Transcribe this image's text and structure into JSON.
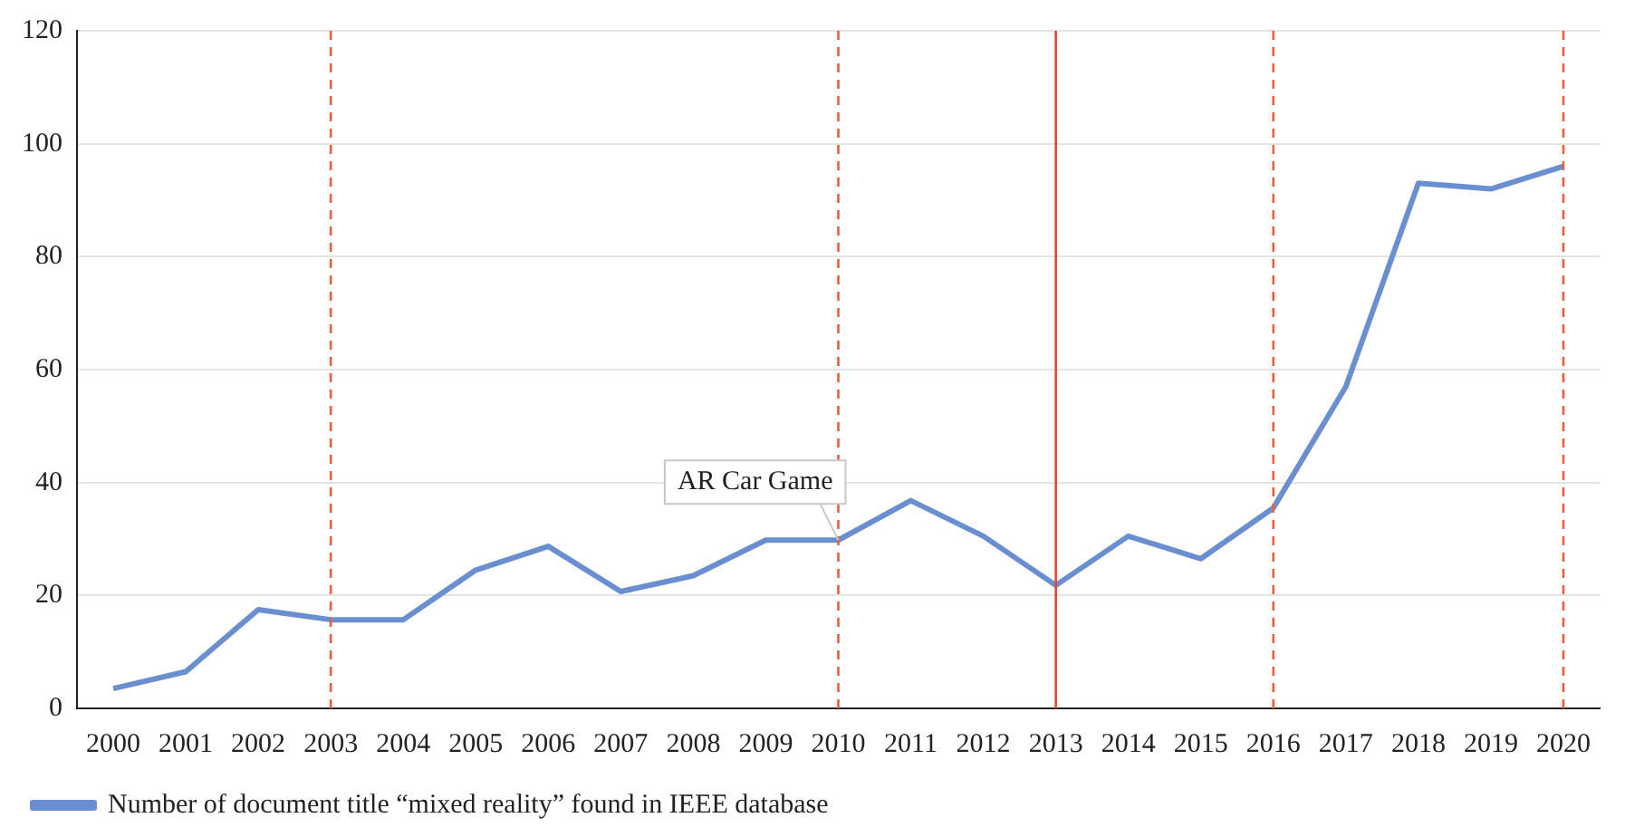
{
  "chart_data": {
    "type": "line",
    "categories": [
      "2000",
      "2001",
      "2002",
      "2003",
      "2004",
      "2005",
      "2006",
      "2007",
      "2008",
      "2009",
      "2010",
      "2011",
      "2012",
      "2013",
      "2014",
      "2015",
      "2016",
      "2017",
      "2018",
      "2019",
      "2020"
    ],
    "series": [
      {
        "name": "Number of document title “mixed reality” found in IEEE database",
        "color": "#6a8fd0",
        "values": [
          3.5,
          6.5,
          17.5,
          15.7,
          15.7,
          24.5,
          28.7,
          20.7,
          23.5,
          29.8,
          29.8,
          36.8,
          30.5,
          21.8,
          30.5,
          26.5,
          35.5,
          57,
          93,
          92,
          96
        ]
      }
    ],
    "ylim": [
      0,
      120
    ],
    "yticks": [
      0,
      20,
      40,
      60,
      80,
      100,
      120
    ],
    "grid": "y",
    "legend": "bottom",
    "marker": "none",
    "line_style": "solid",
    "ref_lines": [
      {
        "axis": "x",
        "value": "2003",
        "color": "#e8603c",
        "line_style": "dashed"
      },
      {
        "axis": "x",
        "value": "2010",
        "color": "#e8603c",
        "line_style": "dashed"
      },
      {
        "axis": "x",
        "value": "2013",
        "color": "#e8452c",
        "line_style": "solid"
      },
      {
        "axis": "x",
        "value": "2016",
        "color": "#e8603c",
        "line_style": "dashed"
      },
      {
        "axis": "x",
        "value": "2020",
        "color": "#e8603c",
        "line_style": "dashed"
      }
    ],
    "annotations": [
      {
        "text": "AR Car Game",
        "x": "2010",
        "y": 29.8
      }
    ]
  }
}
